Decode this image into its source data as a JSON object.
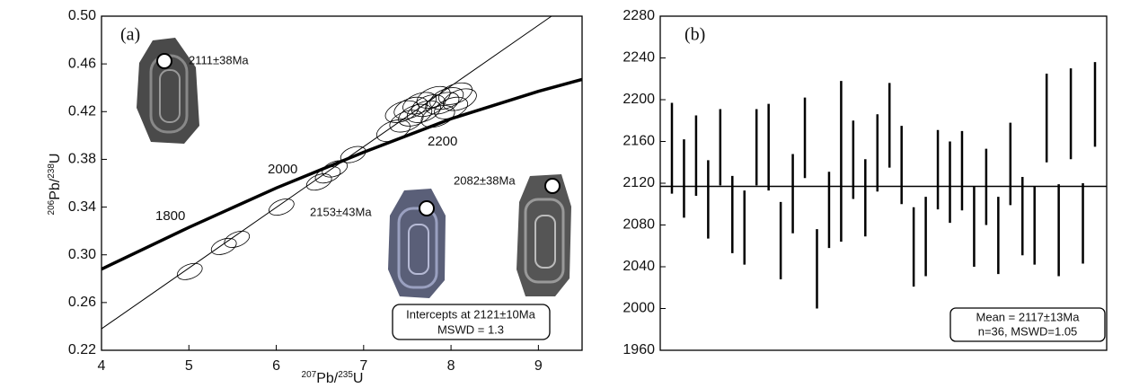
{
  "chart_data": [
    {
      "type": "concordia",
      "panel_label": "(a)",
      "x_label": [
        "207",
        "Pb/",
        "235",
        "U"
      ],
      "y_label": [
        "206",
        "Pb/",
        "238",
        "U"
      ],
      "xlim": [
        4,
        9.5
      ],
      "xticks": [
        4,
        5,
        6,
        7,
        8,
        9
      ],
      "ylim": [
        0.22,
        0.5
      ],
      "yticks": [
        0.22,
        0.26,
        {
          "value": 0.3,
          "label": "0.30"
        },
        0.34,
        0.38,
        0.42,
        0.46,
        {
          "value": 0.5,
          "label": "0.50"
        }
      ],
      "concordia": {
        "x": [
          4,
          5,
          6,
          7,
          8,
          9,
          9.5
        ],
        "y": [
          0.288,
          0.323,
          0.356,
          0.386,
          0.414,
          0.437,
          0.447
        ]
      },
      "discordia": {
        "x": [
          4,
          9.15
        ],
        "y": [
          0.238,
          0.5
        ]
      },
      "ellipses": {
        "x": [
          5.01,
          5.4,
          5.55,
          6.06,
          6.49,
          6.59,
          6.67,
          6.88,
          7.34,
          7.49,
          7.59,
          7.69,
          7.74,
          7.85,
          7.9,
          7.95,
          8.0,
          8.05,
          8.1,
          7.64,
          7.8,
          7.54,
          7.44
        ],
        "y": [
          0.286,
          0.307,
          0.313,
          0.34,
          0.361,
          0.367,
          0.372,
          0.384,
          0.404,
          0.412,
          0.417,
          0.42,
          0.425,
          0.416,
          0.427,
          0.431,
          0.423,
          0.435,
          0.43,
          0.427,
          0.432,
          0.423,
          0.42
        ],
        "x_err": [
          0.15,
          0.15,
          0.15,
          0.15,
          0.15,
          0.15,
          0.15,
          0.15,
          0.2,
          0.2,
          0.2,
          0.2,
          0.2,
          0.2,
          0.2,
          0.2,
          0.2,
          0.2,
          0.2,
          0.2,
          0.2,
          0.2,
          0.2
        ],
        "y_err": [
          0.006,
          0.006,
          0.006,
          0.006,
          0.006,
          0.006,
          0.006,
          0.006,
          0.008,
          0.008,
          0.008,
          0.008,
          0.008,
          0.008,
          0.008,
          0.008,
          0.008,
          0.008,
          0.008,
          0.008,
          0.008,
          0.008,
          0.008
        ]
      },
      "age_labels": [
        "1800",
        "2000",
        "2200"
      ],
      "spot_ages": [
        "2111±38Ma",
        "2153±43Ma",
        "2082±38Ma"
      ],
      "intercept_text": "Intercepts at 2121±10Ma",
      "mswd_text": "MSWD = 1.3"
    },
    {
      "type": "errorbar",
      "panel_label": "(b)",
      "ylim": [
        1960,
        2280
      ],
      "yticks": [
        1960,
        2000,
        2040,
        2080,
        2120,
        2160,
        2200,
        2240,
        2280
      ],
      "values": [
        2153.5,
        2124.5,
        2146.5,
        2104.5,
        2154.5,
        2090,
        2077.5,
        2154.5,
        2154.5,
        2065,
        2110,
        2163.5,
        2038,
        2094.5,
        2141,
        2142.5,
        2106,
        2149,
        2175.5,
        2137.5,
        2059,
        2069,
        2133,
        2121,
        2132,
        2078.5,
        2116.5,
        2070,
        2138.5,
        2088.5,
        2079.5,
        2182.5,
        2075,
        2186.5,
        2081.5,
        2195.5
      ],
      "errors": [
        43.5,
        37.5,
        38.5,
        37.5,
        36.5,
        37,
        35.5,
        36.5,
        41.5,
        37,
        38,
        38.5,
        38,
        36.5,
        77,
        37.5,
        37,
        37,
        40.5,
        37.5,
        38,
        38,
        38,
        39,
        38,
        38.5,
        36.5,
        37,
        39.5,
        37.5,
        37.5,
        42.5,
        44,
        43.5,
        38.5,
        40.5
      ],
      "mean": 2117,
      "mean_text": "Mean = 2117±13Ma",
      "stats_text": "n=36, MSWD=1.05"
    }
  ]
}
